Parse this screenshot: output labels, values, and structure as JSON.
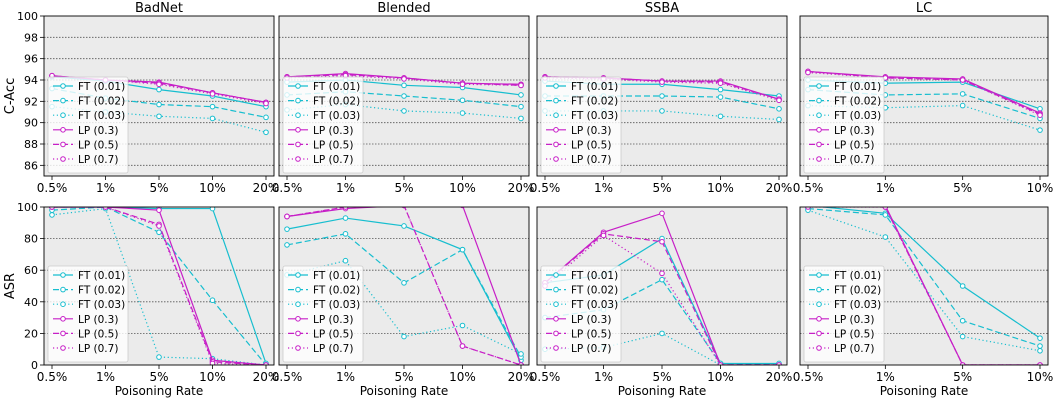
{
  "figure": {
    "colors": {
      "ft": "#17becf",
      "lp": "#c71fc7",
      "panel_bg": "#ebebeb",
      "grid": "#555555"
    },
    "x_label": "Poisoning Rate",
    "legend_labels": [
      "FT (0.01)",
      "FT (0.02)",
      "FT (0.03)",
      "LP (0.3)",
      "LP (0.5)",
      "LP (0.7)"
    ],
    "row_labels": [
      "C-Acc",
      "ASR"
    ]
  },
  "chart_data": [
    {
      "type": "line",
      "title": "BadNet",
      "ylabel": "C-Acc",
      "categories": [
        "0.5%",
        "1%",
        "5%",
        "10%",
        "20%"
      ],
      "ylim": [
        85,
        100
      ],
      "yticks": [
        86,
        88,
        90,
        92,
        94,
        96,
        98,
        100
      ],
      "legend": "lower-left",
      "series": [
        {
          "name": "FT (0.01)",
          "values": [
            94.3,
            93.9,
            93.1,
            92.5,
            91.5
          ]
        },
        {
          "name": "FT (0.02)",
          "values": [
            93.2,
            92.3,
            91.7,
            91.5,
            90.5
          ]
        },
        {
          "name": "FT (0.03)",
          "values": [
            91.5,
            91.0,
            90.6,
            90.4,
            89.1
          ]
        },
        {
          "name": "LP (0.3)",
          "values": [
            94.4,
            94.0,
            93.8,
            92.8,
            91.9
          ]
        },
        {
          "name": "LP (0.5)",
          "values": [
            94.4,
            94.0,
            93.7,
            92.8,
            91.9
          ]
        },
        {
          "name": "LP (0.7)",
          "values": [
            94.4,
            94.0,
            93.6,
            92.7,
            91.8
          ]
        }
      ]
    },
    {
      "type": "line",
      "title": "Blended",
      "ylabel": "",
      "categories": [
        "0.5%",
        "1%",
        "5%",
        "10%",
        "20%"
      ],
      "ylim": [
        85,
        100
      ],
      "yticks": [
        86,
        88,
        90,
        92,
        94,
        96,
        98,
        100
      ],
      "legend": "lower-left",
      "series": [
        {
          "name": "FT (0.01)",
          "values": [
            93.8,
            94.0,
            93.5,
            93.3,
            92.6
          ]
        },
        {
          "name": "FT (0.02)",
          "values": [
            92.6,
            92.9,
            92.5,
            92.1,
            91.5
          ]
        },
        {
          "name": "FT (0.03)",
          "values": [
            91.2,
            91.7,
            91.1,
            90.9,
            90.4
          ]
        },
        {
          "name": "LP (0.3)",
          "values": [
            94.3,
            94.6,
            94.2,
            93.7,
            93.6
          ]
        },
        {
          "name": "LP (0.5)",
          "values": [
            94.3,
            94.5,
            94.2,
            93.7,
            93.5
          ]
        },
        {
          "name": "LP (0.7)",
          "values": [
            94.2,
            94.4,
            94.1,
            93.6,
            93.5
          ]
        }
      ]
    },
    {
      "type": "line",
      "title": "SSBA",
      "ylabel": "",
      "categories": [
        "0.5%",
        "1%",
        "5%",
        "10%",
        "20%"
      ],
      "ylim": [
        85,
        100
      ],
      "yticks": [
        86,
        88,
        90,
        92,
        94,
        96,
        98,
        100
      ],
      "legend": "lower-left",
      "series": [
        {
          "name": "FT (0.01)",
          "values": [
            93.9,
            93.6,
            93.6,
            93.1,
            92.5
          ]
        },
        {
          "name": "FT (0.02)",
          "values": [
            92.5,
            92.5,
            92.5,
            92.4,
            91.3
          ]
        },
        {
          "name": "FT (0.03)",
          "values": [
            91.1,
            91.1,
            91.1,
            90.6,
            90.3
          ]
        },
        {
          "name": "LP (0.3)",
          "values": [
            94.3,
            94.2,
            93.9,
            93.9,
            92.2
          ]
        },
        {
          "name": "LP (0.5)",
          "values": [
            94.3,
            94.2,
            93.9,
            93.8,
            92.2
          ]
        },
        {
          "name": "LP (0.7)",
          "values": [
            94.2,
            94.1,
            93.8,
            93.7,
            92.1
          ]
        }
      ]
    },
    {
      "type": "line",
      "title": "LC",
      "ylabel": "",
      "categories": [
        "0.5%",
        "1%",
        "5%",
        "10%"
      ],
      "ylim": [
        85,
        100
      ],
      "yticks": [
        86,
        88,
        90,
        92,
        94,
        96,
        98,
        100
      ],
      "legend": "lower-left",
      "series": [
        {
          "name": "FT (0.01)",
          "values": [
            94.0,
            93.7,
            93.8,
            91.3
          ]
        },
        {
          "name": "FT (0.02)",
          "values": [
            93.1,
            92.6,
            92.7,
            90.4
          ]
        },
        {
          "name": "FT (0.03)",
          "values": [
            91.6,
            91.4,
            91.6,
            89.3
          ]
        },
        {
          "name": "LP (0.3)",
          "values": [
            94.8,
            94.3,
            94.1,
            90.9
          ]
        },
        {
          "name": "LP (0.5)",
          "values": [
            94.8,
            94.2,
            94.0,
            90.8
          ]
        },
        {
          "name": "LP (0.7)",
          "values": [
            94.7,
            94.2,
            94.0,
            90.7
          ]
        }
      ]
    },
    {
      "type": "line",
      "title": "",
      "ylabel": "ASR",
      "xlabel": "Poisoning Rate",
      "categories": [
        "0.5%",
        "1%",
        "5%",
        "10%",
        "20%"
      ],
      "ylim": [
        0,
        100
      ],
      "yticks": [
        0,
        20,
        40,
        60,
        80,
        100
      ],
      "legend": "lower-left",
      "series": [
        {
          "name": "FT (0.01)",
          "values": [
            100,
            100,
            99,
            99,
            1
          ]
        },
        {
          "name": "FT (0.02)",
          "values": [
            98,
            100,
            84,
            41,
            0
          ]
        },
        {
          "name": "FT (0.03)",
          "values": [
            95,
            99,
            5,
            4,
            0
          ]
        },
        {
          "name": "LP (0.3)",
          "values": [
            100,
            100,
            98,
            3,
            0
          ]
        },
        {
          "name": "LP (0.5)",
          "values": [
            100,
            100,
            89,
            2,
            0
          ]
        },
        {
          "name": "LP (0.7)",
          "values": [
            100,
            100,
            88,
            1,
            0
          ]
        }
      ]
    },
    {
      "type": "line",
      "title": "",
      "ylabel": "",
      "xlabel": "Poisoning Rate",
      "categories": [
        "0.5%",
        "1%",
        "5%",
        "10%",
        "20%"
      ],
      "ylim": [
        0,
        100
      ],
      "yticks": [
        0,
        20,
        40,
        60,
        80,
        100
      ],
      "legend": "lower-left",
      "series": [
        {
          "name": "FT (0.01)",
          "values": [
            86,
            93,
            88,
            73,
            3
          ]
        },
        {
          "name": "FT (0.02)",
          "values": [
            76,
            83,
            52,
            73,
            5
          ]
        },
        {
          "name": "FT (0.03)",
          "values": [
            57,
            66,
            18,
            25,
            7
          ]
        },
        {
          "name": "LP (0.3)",
          "values": [
            94,
            99,
            101,
            101,
            0
          ]
        },
        {
          "name": "LP (0.5)",
          "values": [
            94,
            100,
            101,
            12,
            0
          ]
        },
        {
          "name": "LP (0.7)",
          "values": [
            94,
            100,
            101,
            12,
            0
          ]
        }
      ]
    },
    {
      "type": "line",
      "title": "",
      "ylabel": "",
      "xlabel": "Poisoning Rate",
      "categories": [
        "0.5%",
        "1%",
        "5%",
        "10%",
        "20%"
      ],
      "ylim": [
        0,
        100
      ],
      "yticks": [
        0,
        20,
        40,
        60,
        80,
        100
      ],
      "legend": "lower-left",
      "series": [
        {
          "name": "FT (0.01)",
          "values": [
            52,
            57,
            80,
            1,
            1
          ]
        },
        {
          "name": "FT (0.02)",
          "values": [
            30,
            35,
            54,
            1,
            0
          ]
        },
        {
          "name": "FT (0.03)",
          "values": [
            10,
            11,
            20,
            0,
            0
          ]
        },
        {
          "name": "LP (0.3)",
          "values": [
            52,
            84,
            96,
            0,
            0
          ]
        },
        {
          "name": "LP (0.5)",
          "values": [
            52,
            83,
            78,
            0,
            0
          ]
        },
        {
          "name": "LP (0.7)",
          "values": [
            50,
            82,
            58,
            0,
            0
          ]
        }
      ]
    },
    {
      "type": "line",
      "title": "",
      "ylabel": "",
      "xlabel": "Poisoning Rate",
      "categories": [
        "0.5%",
        "1%",
        "5%",
        "10%"
      ],
      "ylim": [
        0,
        100
      ],
      "yticks": [
        0,
        20,
        40,
        60,
        80,
        100
      ],
      "legend": "lower-left",
      "series": [
        {
          "name": "FT (0.01)",
          "values": [
            101,
            96,
            50,
            17
          ]
        },
        {
          "name": "FT (0.02)",
          "values": [
            99,
            95,
            28,
            12
          ]
        },
        {
          "name": "FT (0.03)",
          "values": [
            98,
            81,
            18,
            9
          ]
        },
        {
          "name": "LP (0.3)",
          "values": [
            101,
            101,
            0,
            0
          ]
        },
        {
          "name": "LP (0.5)",
          "values": [
            101,
            100,
            0,
            0
          ]
        },
        {
          "name": "LP (0.7)",
          "values": [
            100,
            100,
            0,
            0
          ]
        }
      ]
    }
  ]
}
